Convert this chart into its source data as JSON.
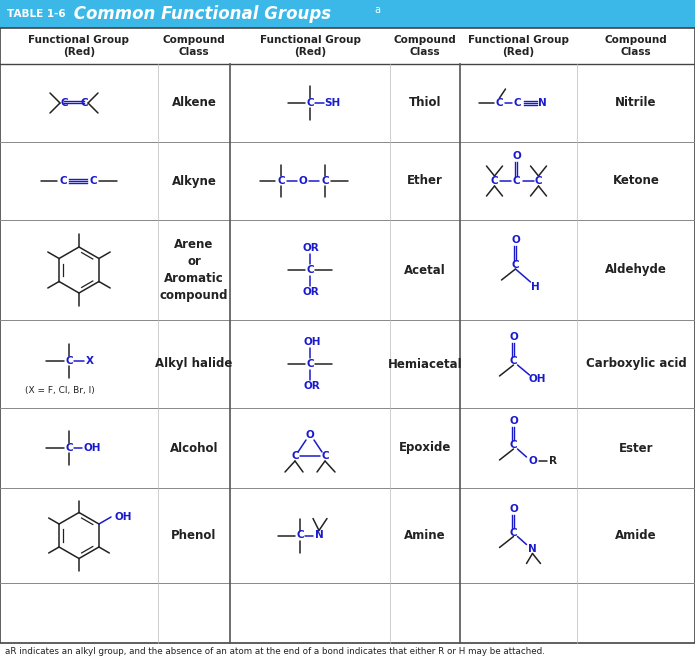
{
  "title_small": "TABLE 1-6",
  "title_main": "Common Functional Groups",
  "title_sup": "a",
  "header_bg": "#3BB8E8",
  "struct_blue": "#1A1ACD",
  "black": "#222222",
  "footnote": "aR indicates an alkyl group, and the absence of an atom at the end of a bond indicates that either R or H may be attached.",
  "col_headers": [
    "Functional Group\n(Red)",
    "Compound\nClass",
    "Functional Group\n(Red)",
    "Compound\nClass",
    "Functional Group\n(Red)",
    "Compound\nClass"
  ],
  "cc1": [
    "Alkene",
    "Alkyne",
    "Arene\nor\nAromatic\ncompound",
    "Alkyl halide",
    "Alcohol",
    "Phenol"
  ],
  "cc2": [
    "Thiol",
    "Ether",
    "Acetal",
    "Hemiacetal",
    "Epoxide",
    "Amine"
  ],
  "cc3": [
    "Nitrile",
    "Ketone",
    "Aldehyde",
    "Carboxylic acid",
    "Ester",
    "Amide"
  ]
}
